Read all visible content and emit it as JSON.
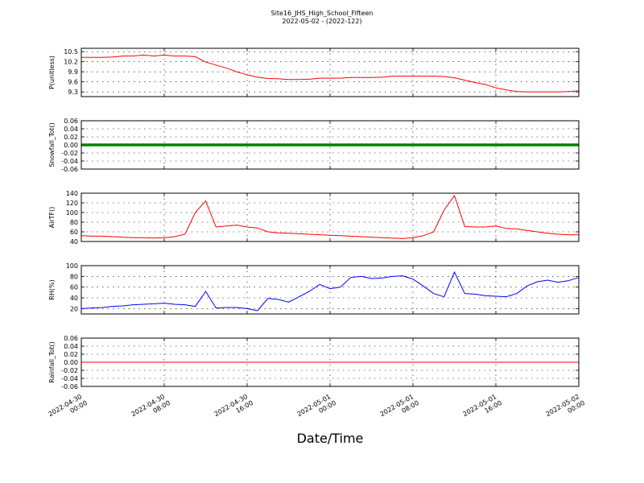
{
  "chart_data": [
    {
      "type": "line",
      "title": "Site16_JHS_High_School_Fifteen",
      "subtitle": "2022-05-02 - (2022-122)",
      "ylabel": "P(unitless)",
      "x": [
        "2022-04-30 00:00",
        "2022-04-30 01:00",
        "2022-04-30 02:00",
        "2022-04-30 03:00",
        "2022-04-30 04:00",
        "2022-04-30 05:00",
        "2022-04-30 06:00",
        "2022-04-30 07:00",
        "2022-04-30 08:00",
        "2022-04-30 09:00",
        "2022-04-30 10:00",
        "2022-04-30 11:00",
        "2022-04-30 12:00",
        "2022-04-30 13:00",
        "2022-04-30 14:00",
        "2022-04-30 15:00",
        "2022-04-30 16:00",
        "2022-04-30 17:00",
        "2022-04-30 18:00",
        "2022-04-30 19:00",
        "2022-04-30 20:00",
        "2022-04-30 21:00",
        "2022-04-30 22:00",
        "2022-04-30 23:00",
        "2022-05-01 00:00",
        "2022-05-01 01:00",
        "2022-05-01 02:00",
        "2022-05-01 03:00",
        "2022-05-01 04:00",
        "2022-05-01 05:00",
        "2022-05-01 06:00",
        "2022-05-01 07:00",
        "2022-05-01 08:00",
        "2022-05-01 09:00",
        "2022-05-01 10:00",
        "2022-05-01 11:00",
        "2022-05-01 12:00",
        "2022-05-01 13:00",
        "2022-05-01 14:00",
        "2022-05-01 15:00",
        "2022-05-01 16:00",
        "2022-05-01 17:00",
        "2022-05-01 18:00",
        "2022-05-01 19:00",
        "2022-05-01 20:00",
        "2022-05-01 21:00",
        "2022-05-01 22:00",
        "2022-05-01 23:00",
        "2022-05-02 00:00"
      ],
      "xlim": [
        "2022-04-30 00:00",
        "2022-05-02 00:00"
      ],
      "ylim": [
        9.16,
        10.6
      ],
      "yticks": [
        9.3,
        9.6,
        9.9,
        10.2,
        10.5
      ],
      "grid": true,
      "series": [
        {
          "color": "#ff0000",
          "values": [
            10.33,
            10.33,
            10.33,
            10.34,
            10.37,
            10.37,
            10.4,
            10.37,
            10.4,
            10.37,
            10.37,
            10.35,
            10.19,
            10.1,
            10.01,
            9.9,
            9.81,
            9.74,
            9.7,
            9.69,
            9.67,
            9.67,
            9.68,
            9.71,
            9.71,
            9.71,
            9.73,
            9.73,
            9.73,
            9.74,
            9.77,
            9.77,
            9.77,
            9.77,
            9.77,
            9.76,
            9.72,
            9.65,
            9.58,
            9.52,
            9.42,
            9.36,
            9.31,
            9.3,
            9.3,
            9.3,
            9.3,
            9.31,
            9.33
          ]
        }
      ]
    },
    {
      "type": "line",
      "ylabel": "Snowfall_Tot()",
      "x": [
        "2022-04-30 00:00",
        "2022-04-30 01:00",
        "2022-04-30 02:00",
        "2022-04-30 03:00",
        "2022-04-30 04:00",
        "2022-04-30 05:00",
        "2022-04-30 06:00",
        "2022-04-30 07:00",
        "2022-04-30 08:00",
        "2022-04-30 09:00",
        "2022-04-30 10:00",
        "2022-04-30 11:00",
        "2022-04-30 12:00",
        "2022-04-30 13:00",
        "2022-04-30 14:00",
        "2022-04-30 15:00",
        "2022-04-30 16:00",
        "2022-04-30 17:00",
        "2022-04-30 18:00",
        "2022-04-30 19:00",
        "2022-04-30 20:00",
        "2022-04-30 21:00",
        "2022-04-30 22:00",
        "2022-04-30 23:00",
        "2022-05-01 00:00",
        "2022-05-01 01:00",
        "2022-05-01 02:00",
        "2022-05-01 03:00",
        "2022-05-01 04:00",
        "2022-05-01 05:00",
        "2022-05-01 06:00",
        "2022-05-01 07:00",
        "2022-05-01 08:00",
        "2022-05-01 09:00",
        "2022-05-01 10:00",
        "2022-05-01 11:00",
        "2022-05-01 12:00",
        "2022-05-01 13:00",
        "2022-05-01 14:00",
        "2022-05-01 15:00",
        "2022-05-01 16:00",
        "2022-05-01 17:00",
        "2022-05-01 18:00",
        "2022-05-01 19:00",
        "2022-05-01 20:00",
        "2022-05-01 21:00",
        "2022-05-01 22:00",
        "2022-05-01 23:00",
        "2022-05-02 00:00"
      ],
      "xlim": [
        "2022-04-30 00:00",
        "2022-05-02 00:00"
      ],
      "ylim": [
        -0.06,
        0.06
      ],
      "yticks": [
        -0.06,
        -0.04,
        -0.02,
        {
          "value": 0,
          "label": "0.00"
        },
        0.02,
        0.04,
        0.06
      ],
      "grid": true,
      "series": [
        {
          "color": "#008000",
          "values": [
            0,
            0,
            0,
            0,
            0,
            0,
            0,
            0,
            0,
            0,
            0,
            0,
            0,
            0,
            0,
            0,
            0,
            0,
            0,
            0,
            0,
            0,
            0,
            0,
            0,
            0,
            0,
            0,
            0,
            0,
            0,
            0,
            0,
            0,
            0,
            0,
            0,
            0,
            0,
            0,
            0,
            0,
            0,
            0,
            0,
            0,
            0,
            0,
            0
          ]
        }
      ]
    },
    {
      "type": "line",
      "ylabel": "AirTF()",
      "x": [
        "2022-04-30 00:00",
        "2022-04-30 01:00",
        "2022-04-30 02:00",
        "2022-04-30 03:00",
        "2022-04-30 04:00",
        "2022-04-30 05:00",
        "2022-04-30 06:00",
        "2022-04-30 07:00",
        "2022-04-30 08:00",
        "2022-04-30 09:00",
        "2022-04-30 10:00",
        "2022-04-30 11:00",
        "2022-04-30 12:00",
        "2022-04-30 13:00",
        "2022-04-30 14:00",
        "2022-04-30 15:00",
        "2022-04-30 16:00",
        "2022-04-30 17:00",
        "2022-04-30 18:00",
        "2022-04-30 19:00",
        "2022-04-30 20:00",
        "2022-04-30 21:00",
        "2022-04-30 22:00",
        "2022-04-30 23:00",
        "2022-05-01 00:00",
        "2022-05-01 01:00",
        "2022-05-01 02:00",
        "2022-05-01 03:00",
        "2022-05-01 04:00",
        "2022-05-01 05:00",
        "2022-05-01 06:00",
        "2022-05-01 07:00",
        "2022-05-01 08:00",
        "2022-05-01 09:00",
        "2022-05-01 10:00",
        "2022-05-01 11:00",
        "2022-05-01 12:00",
        "2022-05-01 13:00",
        "2022-05-01 14:00",
        "2022-05-01 15:00",
        "2022-05-01 16:00",
        "2022-05-01 17:00",
        "2022-05-01 18:00",
        "2022-05-01 19:00",
        "2022-05-01 20:00",
        "2022-05-01 21:00",
        "2022-05-01 22:00",
        "2022-05-01 23:00",
        "2022-05-02 00:00"
      ],
      "xlim": [
        "2022-04-30 00:00",
        "2022-05-02 00:00"
      ],
      "ylim": [
        40,
        140
      ],
      "yticks": [
        40,
        60,
        80,
        100,
        120,
        140
      ],
      "grid": true,
      "series": [
        {
          "color": "#ff0000",
          "values": [
            52,
            51,
            51,
            50,
            49,
            48,
            48,
            47,
            48,
            50,
            55,
            100,
            124,
            70,
            72,
            74,
            70,
            68,
            60,
            58,
            57,
            56,
            55,
            54,
            53,
            52,
            51,
            50,
            49,
            48,
            47,
            46,
            48,
            52,
            60,
            105,
            135,
            71,
            70,
            70,
            72,
            67,
            66,
            63,
            60,
            57,
            55,
            54,
            54
          ]
        }
      ]
    },
    {
      "type": "line",
      "ylabel": "RH(%)",
      "x": [
        "2022-04-30 00:00",
        "2022-04-30 01:00",
        "2022-04-30 02:00",
        "2022-04-30 03:00",
        "2022-04-30 04:00",
        "2022-04-30 05:00",
        "2022-04-30 06:00",
        "2022-04-30 07:00",
        "2022-04-30 08:00",
        "2022-04-30 09:00",
        "2022-04-30 10:00",
        "2022-04-30 11:00",
        "2022-04-30 12:00",
        "2022-04-30 13:00",
        "2022-04-30 14:00",
        "2022-04-30 15:00",
        "2022-04-30 16:00",
        "2022-04-30 17:00",
        "2022-04-30 18:00",
        "2022-04-30 19:00",
        "2022-04-30 20:00",
        "2022-04-30 21:00",
        "2022-04-30 22:00",
        "2022-04-30 23:00",
        "2022-05-01 00:00",
        "2022-05-01 01:00",
        "2022-05-01 02:00",
        "2022-05-01 03:00",
        "2022-05-01 04:00",
        "2022-05-01 05:00",
        "2022-05-01 06:00",
        "2022-05-01 07:00",
        "2022-05-01 08:00",
        "2022-05-01 09:00",
        "2022-05-01 10:00",
        "2022-05-01 11:00",
        "2022-05-01 12:00",
        "2022-05-01 13:00",
        "2022-05-01 14:00",
        "2022-05-01 15:00",
        "2022-05-01 16:00",
        "2022-05-01 17:00",
        "2022-05-01 18:00",
        "2022-05-01 19:00",
        "2022-05-01 20:00",
        "2022-05-01 21:00",
        "2022-05-01 22:00",
        "2022-05-01 23:00",
        "2022-05-02 00:00"
      ],
      "xlim": [
        "2022-04-30 00:00",
        "2022-05-02 00:00"
      ],
      "ylim": [
        10,
        100
      ],
      "yticks": [
        20,
        40,
        60,
        80,
        100
      ],
      "grid": true,
      "series": [
        {
          "color": "#0000ff",
          "values": [
            20,
            21,
            22,
            24,
            25,
            27,
            28,
            29,
            30,
            28,
            27,
            24,
            52,
            21,
            22,
            22,
            20,
            16,
            39,
            37,
            32,
            42,
            52,
            65,
            57,
            60,
            78,
            80,
            76,
            77,
            80,
            81,
            75,
            62,
            48,
            42,
            88,
            48,
            47,
            44,
            43,
            42,
            48,
            62,
            70,
            73,
            69,
            72,
            78
          ]
        }
      ]
    },
    {
      "type": "line",
      "ylabel": "Rainfall_Tot()",
      "xlabel": "Date/Time",
      "x": [
        "2022-04-30 00:00",
        "2022-04-30 01:00",
        "2022-04-30 02:00",
        "2022-04-30 03:00",
        "2022-04-30 04:00",
        "2022-04-30 05:00",
        "2022-04-30 06:00",
        "2022-04-30 07:00",
        "2022-04-30 08:00",
        "2022-04-30 09:00",
        "2022-04-30 10:00",
        "2022-04-30 11:00",
        "2022-04-30 12:00",
        "2022-04-30 13:00",
        "2022-04-30 14:00",
        "2022-04-30 15:00",
        "2022-04-30 16:00",
        "2022-04-30 17:00",
        "2022-04-30 18:00",
        "2022-04-30 19:00",
        "2022-04-30 20:00",
        "2022-04-30 21:00",
        "2022-04-30 22:00",
        "2022-04-30 23:00",
        "2022-05-01 00:00",
        "2022-05-01 01:00",
        "2022-05-01 02:00",
        "2022-05-01 03:00",
        "2022-05-01 04:00",
        "2022-05-01 05:00",
        "2022-05-01 06:00",
        "2022-05-01 07:00",
        "2022-05-01 08:00",
        "2022-05-01 09:00",
        "2022-05-01 10:00",
        "2022-05-01 11:00",
        "2022-05-01 12:00",
        "2022-05-01 13:00",
        "2022-05-01 14:00",
        "2022-05-01 15:00",
        "2022-05-01 16:00",
        "2022-05-01 17:00",
        "2022-05-01 18:00",
        "2022-05-01 19:00",
        "2022-05-01 20:00",
        "2022-05-01 21:00",
        "2022-05-01 22:00",
        "2022-05-01 23:00",
        "2022-05-02 00:00"
      ],
      "xlim": [
        "2022-04-30 00:00",
        "2022-05-02 00:00"
      ],
      "xticks": [
        {
          "value": "2022-04-30 00:00",
          "label": "2022-04-30\n00:00"
        },
        {
          "value": "2022-04-30 08:00",
          "label": "2022-04-30\n08:00"
        },
        {
          "value": "2022-04-30 16:00",
          "label": "2022-04-30\n16:00"
        },
        {
          "value": "2022-05-01 00:00",
          "label": "2022-05-01\n00:00"
        },
        {
          "value": "2022-05-01 08:00",
          "label": "2022-05-01\n08:00"
        },
        {
          "value": "2022-05-01 16:00",
          "label": "2022-05-01\n16:00"
        },
        {
          "value": "2022-05-02 00:00",
          "label": "2022-05-02\n00:00"
        }
      ],
      "ylim": [
        -0.06,
        0.06
      ],
      "yticks": [
        -0.06,
        -0.04,
        -0.02,
        {
          "value": 0,
          "label": "0.00"
        },
        0.02,
        0.04,
        0.06
      ],
      "grid": true,
      "series": [
        {
          "color": "#ff0000",
          "values": [
            0,
            0,
            0,
            0,
            0,
            0,
            0,
            0,
            0,
            0,
            0,
            0,
            0,
            0,
            0,
            0,
            0,
            0,
            0,
            0,
            0,
            0,
            0,
            0,
            0,
            0,
            0,
            0,
            0,
            0,
            0,
            0,
            0,
            0,
            0,
            0,
            0,
            0,
            0,
            0,
            0,
            0,
            0,
            0,
            0,
            0,
            0,
            0,
            0
          ]
        }
      ]
    }
  ]
}
